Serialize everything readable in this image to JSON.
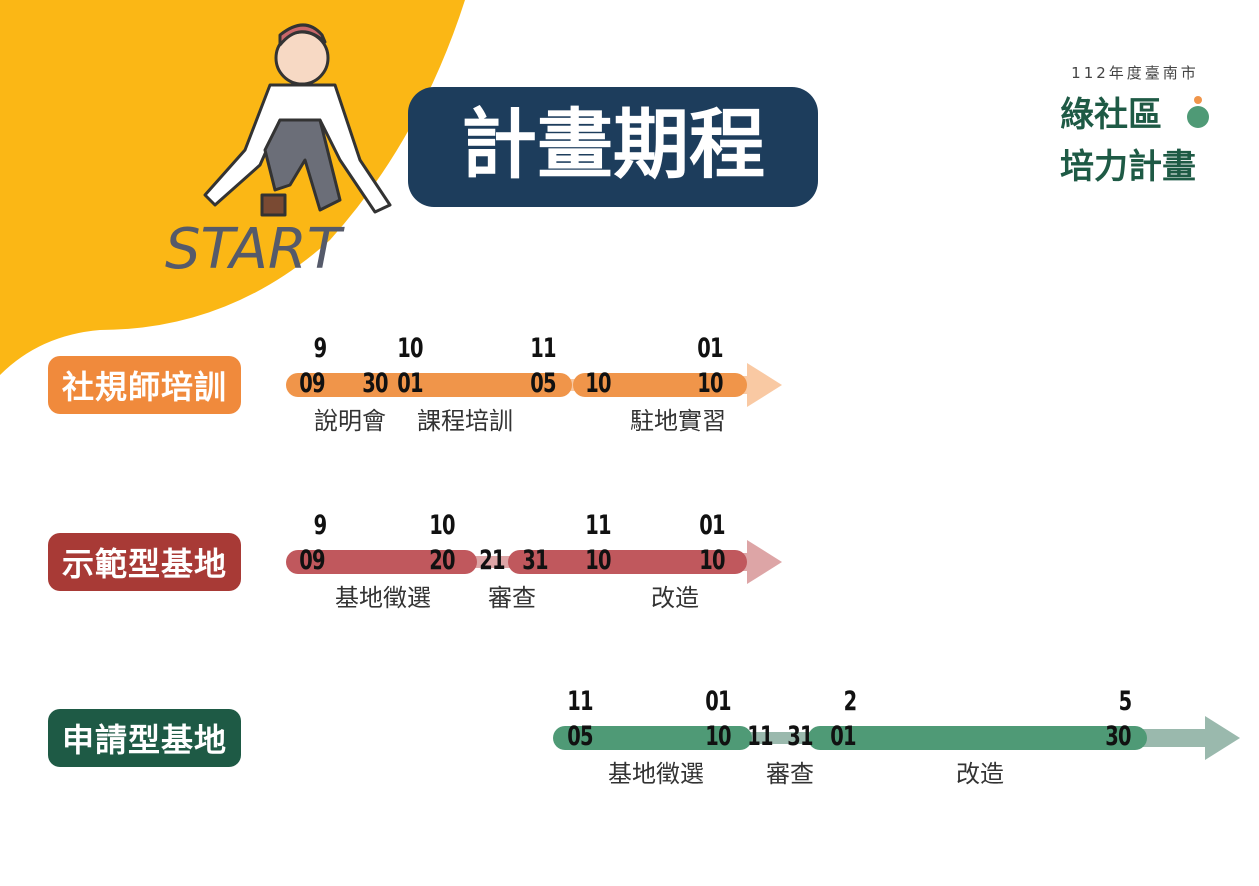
{
  "header": {
    "title": "計畫期程",
    "start": "START"
  },
  "logo": {
    "year": "112年度臺南市",
    "name_line1": "綠社區",
    "name_line2": "培力計畫"
  },
  "tracks": [
    {
      "label": "社規師培訓",
      "months": [
        "9",
        "10",
        "11",
        "01"
      ],
      "days": [
        "09",
        "30",
        "01",
        "05",
        "10",
        "10"
      ],
      "phases": [
        "說明會",
        "課程培訓",
        "駐地實習"
      ]
    },
    {
      "label": "示範型基地",
      "months": [
        "9",
        "10",
        "11",
        "01"
      ],
      "days": [
        "09",
        "20",
        "21",
        "31",
        "10",
        "10"
      ],
      "phases": [
        "基地徵選",
        "審查",
        "改造"
      ]
    },
    {
      "label": "申請型基地",
      "months": [
        "11",
        "01",
        "2",
        "5"
      ],
      "days": [
        "05",
        "10",
        "11",
        "31",
        "01",
        "30"
      ],
      "phases": [
        "基地徵選",
        "審查",
        "改造"
      ]
    }
  ]
}
